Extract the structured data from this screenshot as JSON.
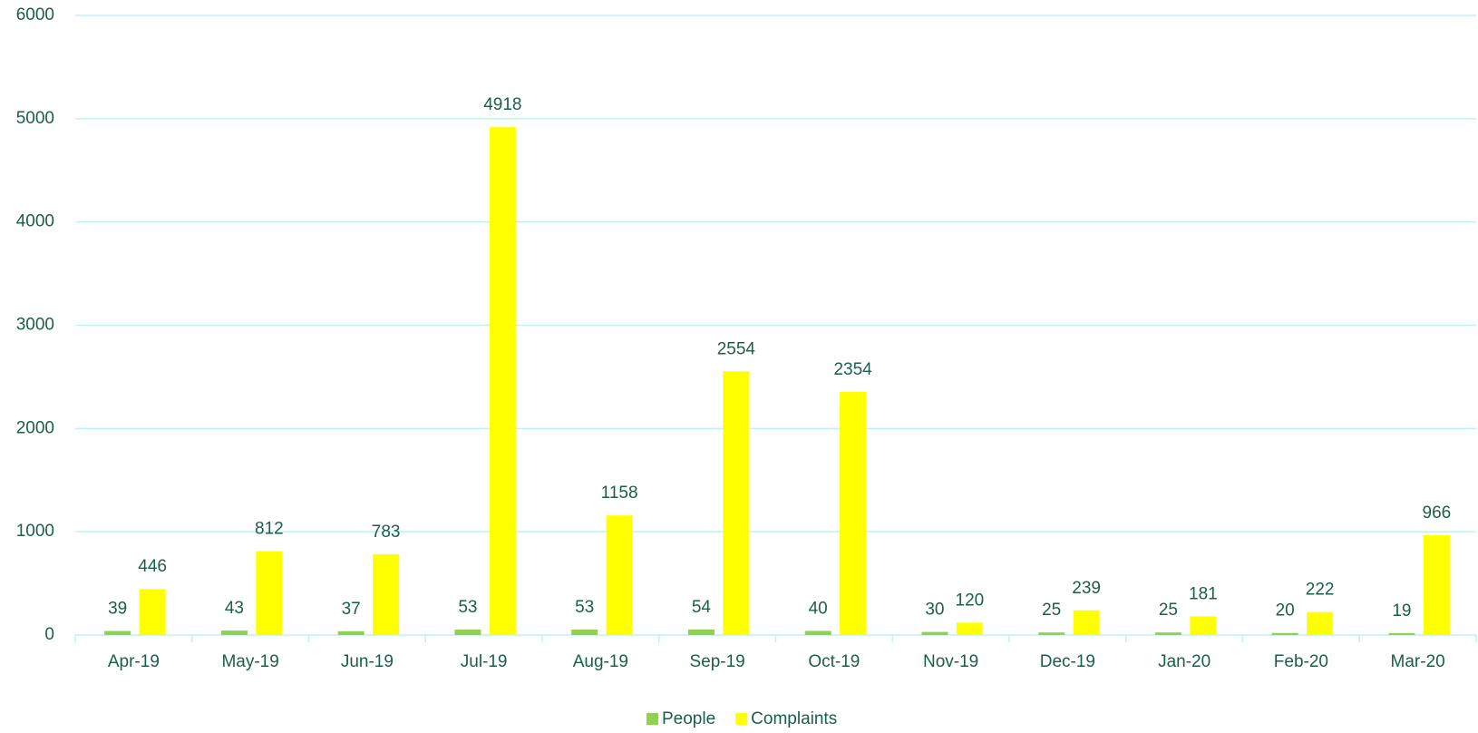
{
  "chart_data": {
    "type": "bar",
    "categories": [
      "Apr-19",
      "May-19",
      "Jun-19",
      "Jul-19",
      "Aug-19",
      "Sep-19",
      "Oct-19",
      "Nov-19",
      "Dec-19",
      "Jan-20",
      "Feb-20",
      "Mar-20"
    ],
    "series": [
      {
        "name": "People",
        "color": "#92d050",
        "values": [
          39,
          43,
          37,
          53,
          53,
          54,
          40,
          30,
          25,
          25,
          20,
          19
        ]
      },
      {
        "name": "Complaints",
        "color": "#ffff00",
        "values": [
          446,
          812,
          783,
          4918,
          1158,
          2554,
          2354,
          120,
          239,
          181,
          222,
          966
        ]
      }
    ],
    "ylim": [
      0,
      6000
    ],
    "yticks": [
      0,
      1000,
      2000,
      3000,
      4000,
      5000,
      6000
    ],
    "grid": true,
    "legend": "bottom"
  }
}
